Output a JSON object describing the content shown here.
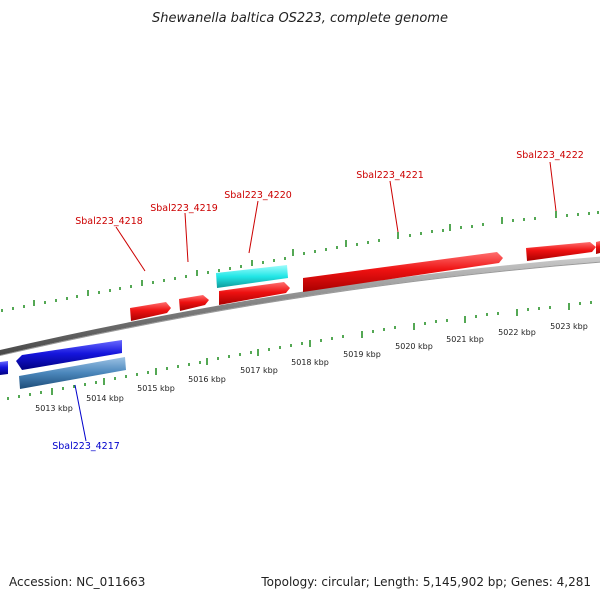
{
  "title": "Shewanella baltica OS223, complete genome",
  "footer": {
    "accession": "Accession: NC_011663",
    "summary": "Topology: circular; Length: 5,145,902 bp; Genes: 4,281"
  },
  "colors": {
    "forward_gene": "#ee1111",
    "selected_gene": "#22dddd",
    "reverse_gene": "#1515dd",
    "reverse_gene_alt": "#4a86bb",
    "ruler_ticks": "#1a8a1a",
    "backbone": "#808080",
    "forward_label": "#cc0000",
    "reverse_label": "#0000cc"
  },
  "kbp_labels": [
    "5013 kbp",
    "5014 kbp",
    "5015 kbp",
    "5016 kbp",
    "5017 kbp",
    "5018 kbp",
    "5019 kbp",
    "5020 kbp",
    "5021 kbp",
    "5022 kbp",
    "5023 kbp"
  ],
  "gene_labels": [
    {
      "id": "Sbal223_4217",
      "strand": "reverse"
    },
    {
      "id": "Sbal223_4218",
      "strand": "forward"
    },
    {
      "id": "Sbal223_4219",
      "strand": "forward"
    },
    {
      "id": "Sbal223_4220",
      "strand": "forward"
    },
    {
      "id": "Sbal223_4221",
      "strand": "forward"
    },
    {
      "id": "Sbal223_4222",
      "strand": "forward"
    }
  ]
}
